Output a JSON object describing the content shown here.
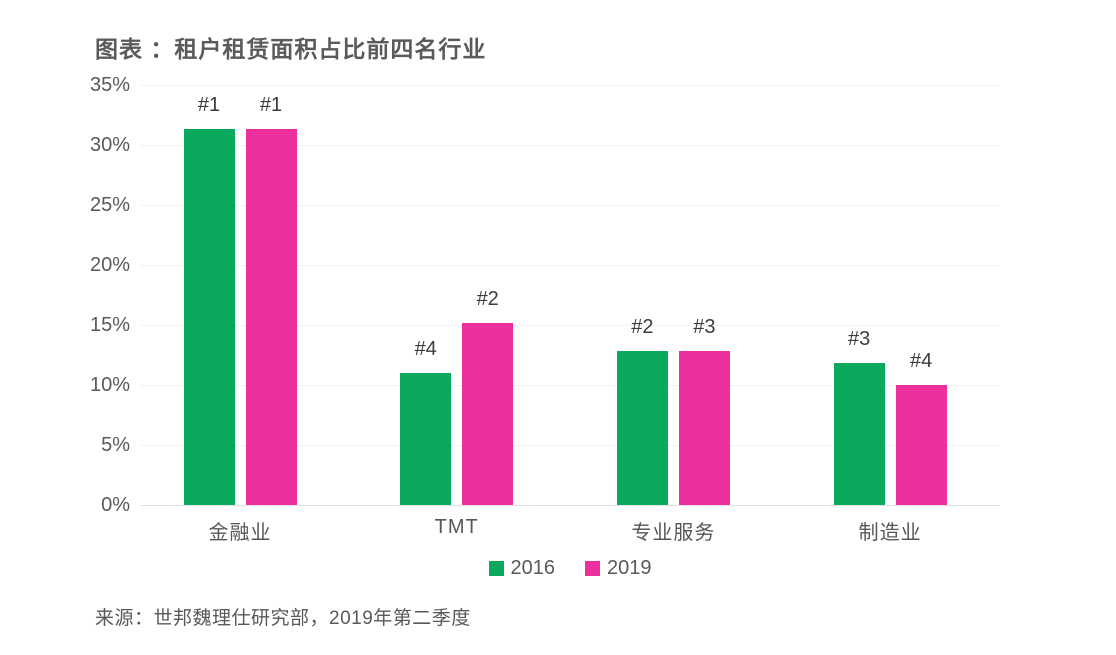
{
  "title": "图表 ：租户租赁面积占比前四名行业",
  "source": "来源：世邦魏理仕研究部，2019年第二季度",
  "colors": {
    "series_2016": "#0ba95e",
    "series_2019": "#ee2f9e",
    "text_gray": "#58595b",
    "rank_label": "#3b3b3d",
    "gridline": "#f2f2f2",
    "baseline": "#e2e2e2"
  },
  "chart_data": {
    "type": "bar",
    "title": "图表 ：租户租赁面积占比前四名行业",
    "categories": [
      "金融业",
      "TMT",
      "专业服务",
      "制造业"
    ],
    "series": [
      {
        "name": "2016",
        "color": "#0ba95e",
        "values": [
          31.3,
          11.0,
          12.8,
          11.8
        ],
        "rank_labels": [
          "#1",
          "#4",
          "#2",
          "#3"
        ]
      },
      {
        "name": "2019",
        "color": "#ee2f9e",
        "values": [
          31.3,
          15.2,
          12.8,
          10.0
        ],
        "rank_labels": [
          "#1",
          "#2",
          "#3",
          "#4"
        ]
      }
    ],
    "xlabel": "",
    "ylabel": "",
    "ylim": [
      0,
      35
    ],
    "yticks": [
      0,
      5,
      10,
      15,
      20,
      25,
      30,
      35
    ],
    "ytick_labels": [
      "0%",
      "5%",
      "10%",
      "15%",
      "20%",
      "25%",
      "30%",
      "35%"
    ],
    "grid": true,
    "legend_position": "bottom",
    "source": "来源：世邦魏理仕研究部，2019年第二季度"
  }
}
